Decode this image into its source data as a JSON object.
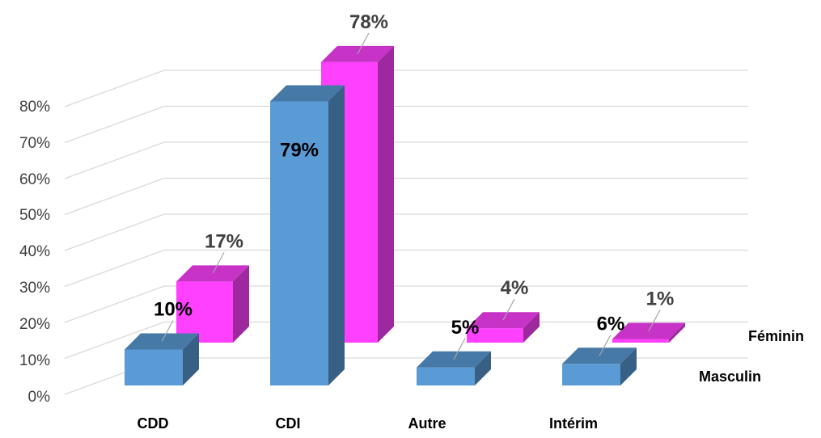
{
  "chart_data": {
    "type": "bar",
    "subtype": "3d-depth-bar",
    "title": "",
    "xlabel": "",
    "ylabel": "",
    "ylim": [
      0,
      80
    ],
    "yticks": [
      "0%",
      "10%",
      "20%",
      "30%",
      "40%",
      "50%",
      "60%",
      "70%",
      "80%"
    ],
    "categories": [
      "CDD",
      "CDI",
      "Autre",
      "Intérim"
    ],
    "series": [
      {
        "name": "Masculin",
        "values": [
          10,
          79,
          5,
          6
        ],
        "labels": [
          "10%",
          "79%",
          "5%",
          "6%"
        ],
        "color": "#5b9bd5"
      },
      {
        "name": "Féminin",
        "values": [
          17,
          78,
          4,
          1
        ],
        "labels": [
          "17%",
          "78%",
          "4%",
          "1%"
        ],
        "color": "#ff40ff"
      }
    ],
    "grid": true,
    "legend": "right"
  }
}
